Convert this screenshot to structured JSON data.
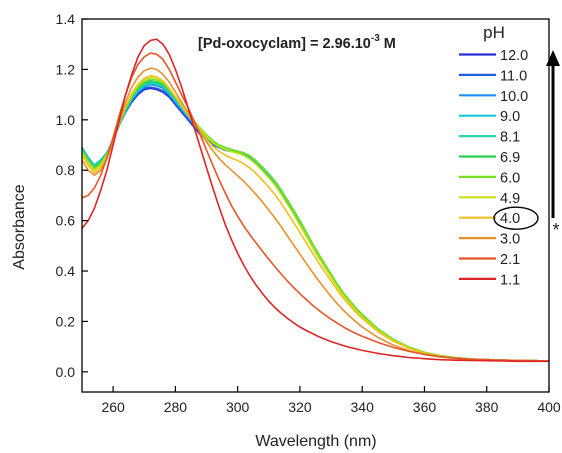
{
  "chart_data": {
    "type": "line",
    "title": "",
    "annotation": {
      "prefix": "[Pd-oxocyclam] = 2.96.10",
      "superscript": "-3",
      "suffix": " M"
    },
    "xlabel": "Wavelength (nm)",
    "ylabel": "Absorbance",
    "xlim": [
      250,
      400
    ],
    "ylim": [
      -0.08,
      1.4
    ],
    "xticks": [
      260,
      280,
      300,
      320,
      340,
      360,
      380,
      400
    ],
    "yticks": [
      0.0,
      0.2,
      0.4,
      0.6,
      0.8,
      1.0,
      1.2,
      1.4
    ],
    "legend": {
      "title": "pH",
      "placement": "top-right",
      "circled_entry": "4.0"
    },
    "arrow_marker": "*",
    "x": [
      250,
      252,
      254,
      256,
      258,
      260,
      262,
      264,
      266,
      268,
      270,
      272,
      274,
      276,
      278,
      280,
      282,
      284,
      286,
      288,
      290,
      292,
      294,
      296,
      298,
      300,
      302,
      304,
      306,
      308,
      310,
      312,
      314,
      316,
      318,
      320,
      322,
      324,
      326,
      328,
      330,
      332,
      334,
      336,
      338,
      340,
      345,
      350,
      355,
      360,
      365,
      370,
      375,
      380,
      385,
      390,
      395,
      400
    ],
    "series": [
      {
        "name": "12.0",
        "color": "#2a2fd9",
        "values": [
          0.89,
          0.85,
          0.82,
          0.84,
          0.87,
          0.92,
          0.98,
          1.03,
          1.07,
          1.1,
          1.12,
          1.125,
          1.12,
          1.11,
          1.09,
          1.06,
          1.03,
          1.0,
          0.97,
          0.94,
          0.92,
          0.9,
          0.89,
          0.88,
          0.875,
          0.87,
          0.86,
          0.845,
          0.825,
          0.8,
          0.775,
          0.745,
          0.71,
          0.67,
          0.63,
          0.59,
          0.545,
          0.5,
          0.46,
          0.42,
          0.38,
          0.34,
          0.305,
          0.275,
          0.245,
          0.22,
          0.165,
          0.125,
          0.095,
          0.075,
          0.063,
          0.055,
          0.05,
          0.048,
          0.046,
          0.045,
          0.044,
          0.043
        ]
      },
      {
        "name": "11.0",
        "color": "#1f5fe0",
        "values": [
          0.89,
          0.85,
          0.82,
          0.84,
          0.87,
          0.92,
          0.98,
          1.03,
          1.075,
          1.105,
          1.125,
          1.13,
          1.125,
          1.115,
          1.095,
          1.065,
          1.035,
          1.005,
          0.975,
          0.945,
          0.92,
          0.9,
          0.89,
          0.88,
          0.875,
          0.87,
          0.86,
          0.845,
          0.825,
          0.8,
          0.775,
          0.745,
          0.71,
          0.67,
          0.63,
          0.59,
          0.545,
          0.5,
          0.46,
          0.42,
          0.38,
          0.34,
          0.305,
          0.275,
          0.245,
          0.22,
          0.165,
          0.125,
          0.095,
          0.075,
          0.063,
          0.055,
          0.05,
          0.048,
          0.046,
          0.045,
          0.044,
          0.043
        ]
      },
      {
        "name": "10.0",
        "color": "#1c8ff0",
        "values": [
          0.89,
          0.85,
          0.82,
          0.84,
          0.87,
          0.92,
          0.98,
          1.035,
          1.08,
          1.11,
          1.13,
          1.14,
          1.135,
          1.125,
          1.1,
          1.07,
          1.04,
          1.01,
          0.98,
          0.95,
          0.925,
          0.905,
          0.89,
          0.88,
          0.875,
          0.87,
          0.862,
          0.848,
          0.828,
          0.803,
          0.778,
          0.748,
          0.713,
          0.673,
          0.633,
          0.592,
          0.548,
          0.503,
          0.462,
          0.422,
          0.382,
          0.342,
          0.307,
          0.277,
          0.247,
          0.222,
          0.167,
          0.126,
          0.096,
          0.076,
          0.063,
          0.055,
          0.05,
          0.048,
          0.046,
          0.045,
          0.044,
          0.043
        ]
      },
      {
        "name": "9.0",
        "color": "#18c8d8",
        "values": [
          0.89,
          0.85,
          0.82,
          0.84,
          0.87,
          0.92,
          0.98,
          1.035,
          1.08,
          1.115,
          1.135,
          1.145,
          1.14,
          1.13,
          1.105,
          1.075,
          1.045,
          1.015,
          0.985,
          0.955,
          0.93,
          0.91,
          0.895,
          0.885,
          0.878,
          0.872,
          0.865,
          0.852,
          0.832,
          0.807,
          0.782,
          0.752,
          0.717,
          0.677,
          0.637,
          0.595,
          0.55,
          0.505,
          0.464,
          0.424,
          0.384,
          0.344,
          0.309,
          0.279,
          0.249,
          0.224,
          0.168,
          0.127,
          0.097,
          0.076,
          0.063,
          0.055,
          0.05,
          0.048,
          0.046,
          0.045,
          0.044,
          0.043
        ]
      },
      {
        "name": "8.1",
        "color": "#20d8a8",
        "values": [
          0.885,
          0.845,
          0.815,
          0.835,
          0.868,
          0.92,
          0.98,
          1.04,
          1.085,
          1.12,
          1.14,
          1.15,
          1.145,
          1.135,
          1.11,
          1.08,
          1.05,
          1.02,
          0.99,
          0.96,
          0.935,
          0.913,
          0.898,
          0.888,
          0.88,
          0.874,
          0.867,
          0.855,
          0.835,
          0.81,
          0.785,
          0.755,
          0.72,
          0.68,
          0.64,
          0.598,
          0.553,
          0.508,
          0.466,
          0.426,
          0.386,
          0.346,
          0.311,
          0.281,
          0.251,
          0.226,
          0.17,
          0.128,
          0.098,
          0.077,
          0.064,
          0.056,
          0.051,
          0.048,
          0.046,
          0.045,
          0.044,
          0.043
        ]
      },
      {
        "name": "6.9",
        "color": "#28d050",
        "values": [
          0.88,
          0.84,
          0.81,
          0.83,
          0.865,
          0.92,
          0.985,
          1.045,
          1.09,
          1.125,
          1.145,
          1.155,
          1.15,
          1.14,
          1.115,
          1.085,
          1.055,
          1.025,
          0.995,
          0.965,
          0.94,
          0.917,
          0.9,
          0.89,
          0.882,
          0.876,
          0.869,
          0.857,
          0.837,
          0.812,
          0.787,
          0.757,
          0.722,
          0.682,
          0.642,
          0.6,
          0.555,
          0.51,
          0.468,
          0.428,
          0.388,
          0.348,
          0.313,
          0.283,
          0.253,
          0.228,
          0.171,
          0.129,
          0.098,
          0.077,
          0.064,
          0.056,
          0.051,
          0.048,
          0.046,
          0.045,
          0.044,
          0.043
        ]
      },
      {
        "name": "6.0",
        "color": "#78e020",
        "values": [
          0.875,
          0.835,
          0.805,
          0.825,
          0.862,
          0.92,
          0.985,
          1.048,
          1.095,
          1.13,
          1.152,
          1.162,
          1.158,
          1.147,
          1.12,
          1.09,
          1.06,
          1.028,
          0.997,
          0.967,
          0.94,
          0.917,
          0.9,
          0.889,
          0.881,
          0.875,
          0.868,
          0.855,
          0.835,
          0.81,
          0.785,
          0.755,
          0.72,
          0.68,
          0.64,
          0.598,
          0.553,
          0.508,
          0.466,
          0.426,
          0.386,
          0.346,
          0.311,
          0.281,
          0.251,
          0.226,
          0.17,
          0.128,
          0.098,
          0.077,
          0.064,
          0.056,
          0.051,
          0.048,
          0.046,
          0.045,
          0.044,
          0.043
        ]
      },
      {
        "name": "4.9",
        "color": "#c8e010",
        "values": [
          0.87,
          0.83,
          0.8,
          0.82,
          0.86,
          0.92,
          0.99,
          1.052,
          1.1,
          1.137,
          1.16,
          1.17,
          1.166,
          1.153,
          1.125,
          1.093,
          1.06,
          1.027,
          0.995,
          0.963,
          0.935,
          0.91,
          0.893,
          0.882,
          0.874,
          0.867,
          0.858,
          0.843,
          0.822,
          0.796,
          0.77,
          0.74,
          0.704,
          0.664,
          0.624,
          0.582,
          0.538,
          0.494,
          0.453,
          0.414,
          0.375,
          0.336,
          0.302,
          0.272,
          0.243,
          0.218,
          0.164,
          0.124,
          0.095,
          0.075,
          0.063,
          0.055,
          0.05,
          0.048,
          0.046,
          0.045,
          0.044,
          0.043
        ]
      },
      {
        "name": "4.0",
        "color": "#f0c020",
        "values": [
          0.86,
          0.82,
          0.79,
          0.81,
          0.855,
          0.92,
          0.99,
          1.055,
          1.105,
          1.14,
          1.165,
          1.175,
          1.17,
          1.155,
          1.125,
          1.09,
          1.055,
          1.02,
          0.985,
          0.952,
          0.922,
          0.895,
          0.875,
          0.86,
          0.848,
          0.838,
          0.825,
          0.808,
          0.786,
          0.76,
          0.733,
          0.703,
          0.668,
          0.63,
          0.592,
          0.553,
          0.512,
          0.472,
          0.433,
          0.396,
          0.36,
          0.324,
          0.292,
          0.263,
          0.236,
          0.212,
          0.16,
          0.121,
          0.093,
          0.074,
          0.062,
          0.054,
          0.05,
          0.048,
          0.046,
          0.045,
          0.044,
          0.043
        ]
      },
      {
        "name": "3.0",
        "color": "#e8902a",
        "values": [
          0.84,
          0.8,
          0.78,
          0.8,
          0.845,
          0.915,
          0.995,
          1.07,
          1.13,
          1.17,
          1.195,
          1.205,
          1.2,
          1.18,
          1.15,
          1.11,
          1.07,
          1.03,
          0.99,
          0.95,
          0.912,
          0.877,
          0.847,
          0.822,
          0.8,
          0.778,
          0.755,
          0.73,
          0.703,
          0.673,
          0.642,
          0.61,
          0.575,
          0.539,
          0.503,
          0.467,
          0.431,
          0.396,
          0.362,
          0.33,
          0.299,
          0.27,
          0.244,
          0.22,
          0.198,
          0.178,
          0.137,
          0.106,
          0.084,
          0.069,
          0.059,
          0.053,
          0.049,
          0.047,
          0.046,
          0.045,
          0.044,
          0.043
        ]
      },
      {
        "name": "2.1",
        "color": "#e8552a",
        "values": [
          0.69,
          0.7,
          0.73,
          0.78,
          0.85,
          0.93,
          1.02,
          1.1,
          1.17,
          1.22,
          1.25,
          1.265,
          1.26,
          1.24,
          1.2,
          1.15,
          1.1,
          1.05,
          0.995,
          0.94,
          0.88,
          0.82,
          0.763,
          0.71,
          0.66,
          0.617,
          0.578,
          0.543,
          0.51,
          0.478,
          0.447,
          0.417,
          0.388,
          0.36,
          0.334,
          0.31,
          0.287,
          0.265,
          0.245,
          0.226,
          0.209,
          0.193,
          0.178,
          0.164,
          0.152,
          0.141,
          0.117,
          0.097,
          0.081,
          0.069,
          0.06,
          0.054,
          0.05,
          0.048,
          0.046,
          0.045,
          0.044,
          0.043
        ]
      },
      {
        "name": "1.1",
        "color": "#dc2626",
        "values": [
          0.57,
          0.6,
          0.65,
          0.72,
          0.8,
          0.9,
          1.0,
          1.1,
          1.18,
          1.25,
          1.295,
          1.315,
          1.32,
          1.3,
          1.26,
          1.2,
          1.13,
          1.05,
          0.97,
          0.89,
          0.81,
          0.73,
          0.655,
          0.585,
          0.525,
          0.47,
          0.422,
          0.38,
          0.343,
          0.31,
          0.28,
          0.255,
          0.232,
          0.212,
          0.194,
          0.178,
          0.164,
          0.152,
          0.14,
          0.13,
          0.12,
          0.112,
          0.104,
          0.097,
          0.091,
          0.085,
          0.073,
          0.064,
          0.057,
          0.052,
          0.048,
          0.046,
          0.045,
          0.044,
          0.043,
          0.042,
          0.042,
          0.042
        ]
      }
    ]
  }
}
